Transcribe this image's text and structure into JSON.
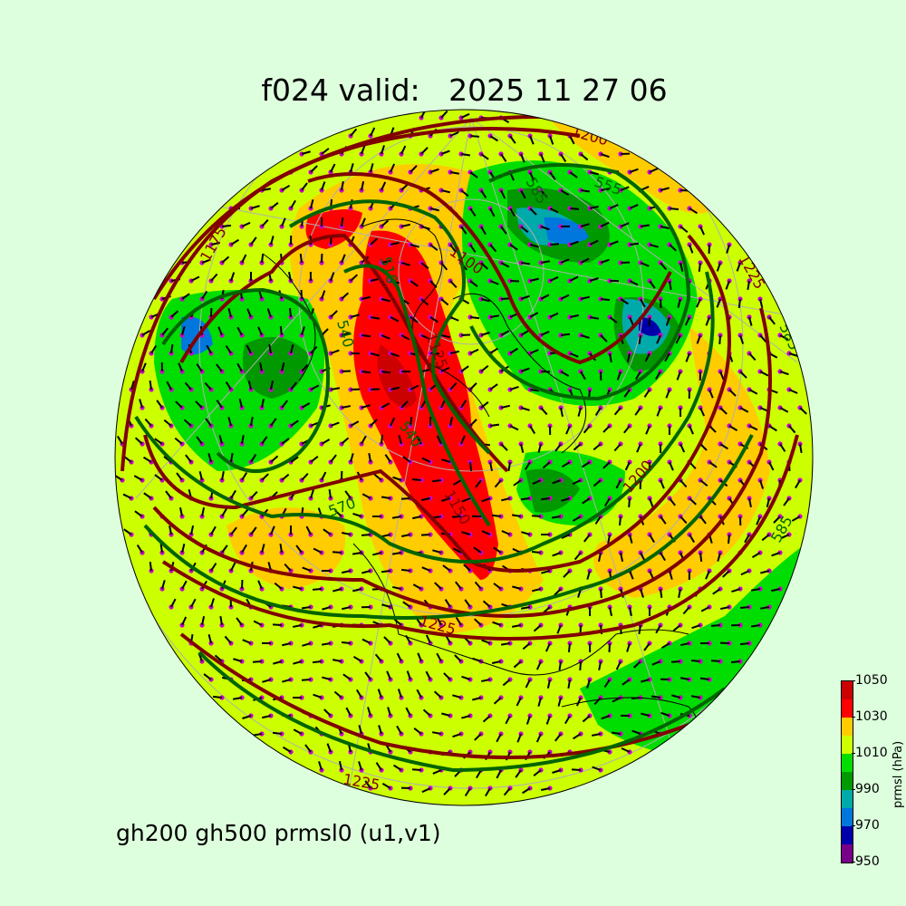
{
  "title": "f024 valid:   2025 11 27 06",
  "subtitle": "gh200 gh500 prmsl0 (u1,v1)",
  "colorbar": {
    "label": "prmsl (hPa)",
    "ticks": [
      "1050",
      "1030",
      "1010",
      "990",
      "970",
      "950"
    ],
    "range": [
      950,
      1050
    ],
    "levels": [
      950,
      960,
      970,
      980,
      990,
      1000,
      1010,
      1020,
      1030,
      1040,
      1050
    ],
    "colors": [
      "#770088",
      "#0000aa",
      "#0077dd",
      "#00aaaa",
      "#009900",
      "#00dd00",
      "#ccff00",
      "#ffcc00",
      "#ff0000",
      "#cc0000"
    ]
  },
  "contour_colors": {
    "gh200": "#800000",
    "gh500": "#006400",
    "wind_dots": "#cc00cc",
    "barbs": "#000000"
  },
  "contour_labels": [
    {
      "text": "1200",
      "series": "gh200"
    },
    {
      "text": "555",
      "series": "gh500"
    },
    {
      "text": "585",
      "series": "gh500"
    },
    {
      "text": "1225",
      "series": "gh200"
    },
    {
      "text": "585",
      "series": "gh500"
    },
    {
      "text": "1250",
      "series": "gh200"
    },
    {
      "text": "1175",
      "series": "gh200"
    },
    {
      "text": "1100",
      "series": "gh200"
    },
    {
      "text": "510",
      "series": "gh500"
    },
    {
      "text": "1125",
      "series": "gh200"
    },
    {
      "text": "540",
      "series": "gh500"
    },
    {
      "text": "540",
      "series": "gh500"
    },
    {
      "text": "1150",
      "series": "gh200"
    },
    {
      "text": "1200",
      "series": "gh200"
    },
    {
      "text": "570",
      "series": "gh500"
    },
    {
      "text": "1225",
      "series": "gh200"
    },
    {
      "text": "585",
      "series": "gh500"
    },
    {
      "text": "1225",
      "series": "gh200"
    }
  ]
}
